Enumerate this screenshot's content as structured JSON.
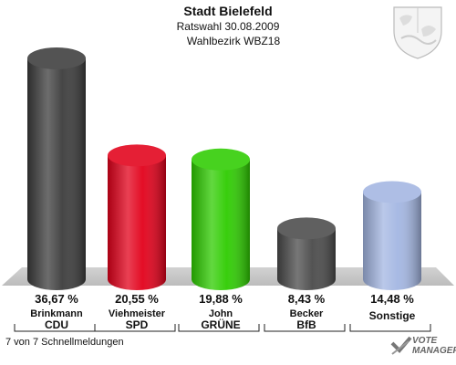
{
  "header": {
    "title": "Stadt Bielefeld",
    "subtitle": "Ratswahl 30.08.2009",
    "district": "Wahlbezirk WBZ18"
  },
  "footer": {
    "status": "7 von 7 Schnellmeldungen",
    "brand_line1": "VOTE",
    "brand_line2": "MANAGER"
  },
  "chart_data": {
    "type": "bar",
    "title": "Stadt Bielefeld",
    "subtitle": "Ratswahl 30.08.2009",
    "categories": [
      "CDU",
      "SPD",
      "GRÜNE",
      "BfB",
      "Sonstige"
    ],
    "candidates": [
      "Brinkmann",
      "Viehmeister",
      "John",
      "Becker",
      ""
    ],
    "values": [
      36.67,
      20.55,
      19.88,
      8.43,
      14.48
    ],
    "labels": [
      "36,67 %",
      "20,55 %",
      "19,88 %",
      "8,43 %",
      "14,48 %"
    ],
    "colors": [
      "#3c3c3c",
      "#e2001a",
      "#2ecc00",
      "#4a4a4a",
      "#a3b6e2"
    ],
    "ylim": [
      0,
      40
    ],
    "grid": false,
    "legend": "none"
  }
}
